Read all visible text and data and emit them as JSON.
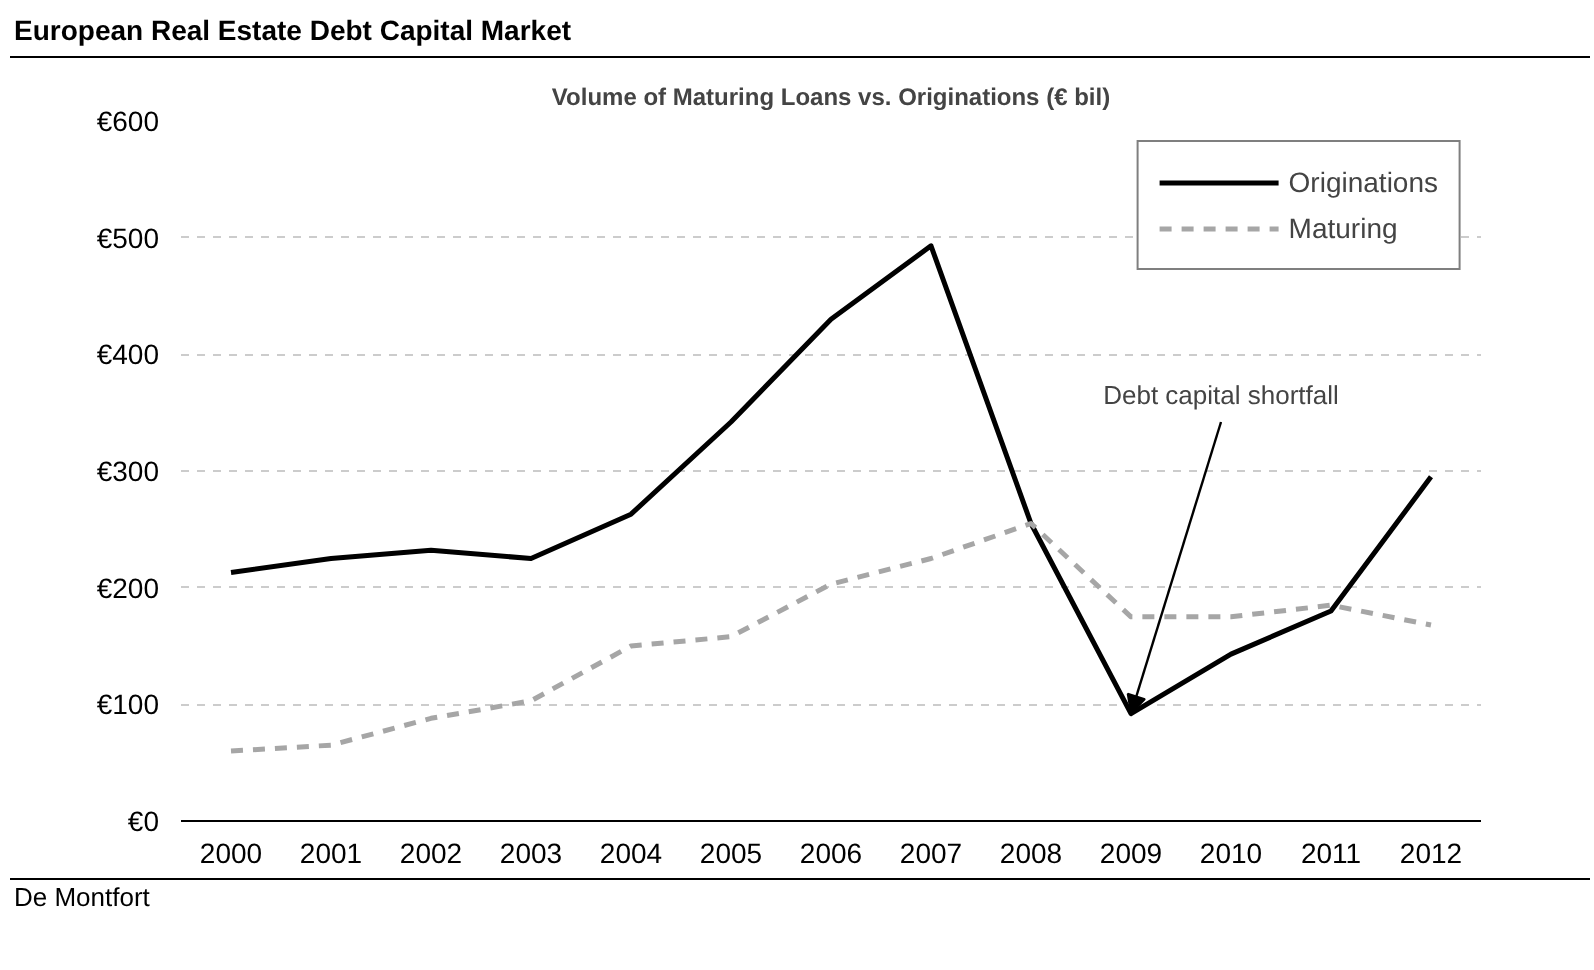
{
  "chart_data": {
    "type": "line",
    "title": "European Real Estate Debt Capital Market",
    "subtitle": "Volume of Maturing Loans vs. Originations (€ bil)",
    "categories": [
      "2000",
      "2001",
      "2002",
      "2003",
      "2004",
      "2005",
      "2006",
      "2007",
      "2008",
      "2009",
      "2010",
      "2011",
      "2012"
    ],
    "series": [
      {
        "name": "Originations",
        "color": "#000000",
        "line_style": "solid",
        "values": [
          213,
          225,
          232,
          225,
          263,
          342,
          430,
          493,
          255,
          92,
          143,
          180,
          295
        ]
      },
      {
        "name": "Maturing",
        "color": "#a6a6a6",
        "line_style": "dashed",
        "values": [
          60,
          65,
          88,
          103,
          150,
          158,
          203,
          225,
          255,
          175,
          175,
          185,
          168
        ]
      }
    ],
    "ylim": [
      0,
      600
    ],
    "yticks": [
      {
        "value": 0,
        "label": "€0"
      },
      {
        "value": 100,
        "label": "€100"
      },
      {
        "value": 200,
        "label": "€200"
      },
      {
        "value": 300,
        "label": "€300"
      },
      {
        "value": 400,
        "label": "€400"
      },
      {
        "value": 500,
        "label": "€500"
      },
      {
        "value": 600,
        "label": "€600"
      }
    ],
    "grid": "y",
    "legend": "top right",
    "marker": "none",
    "annotations": [
      {
        "text": "Debt capital shortfall",
        "x": "2009",
        "y": 92
      },
      "De Montfort"
    ]
  }
}
